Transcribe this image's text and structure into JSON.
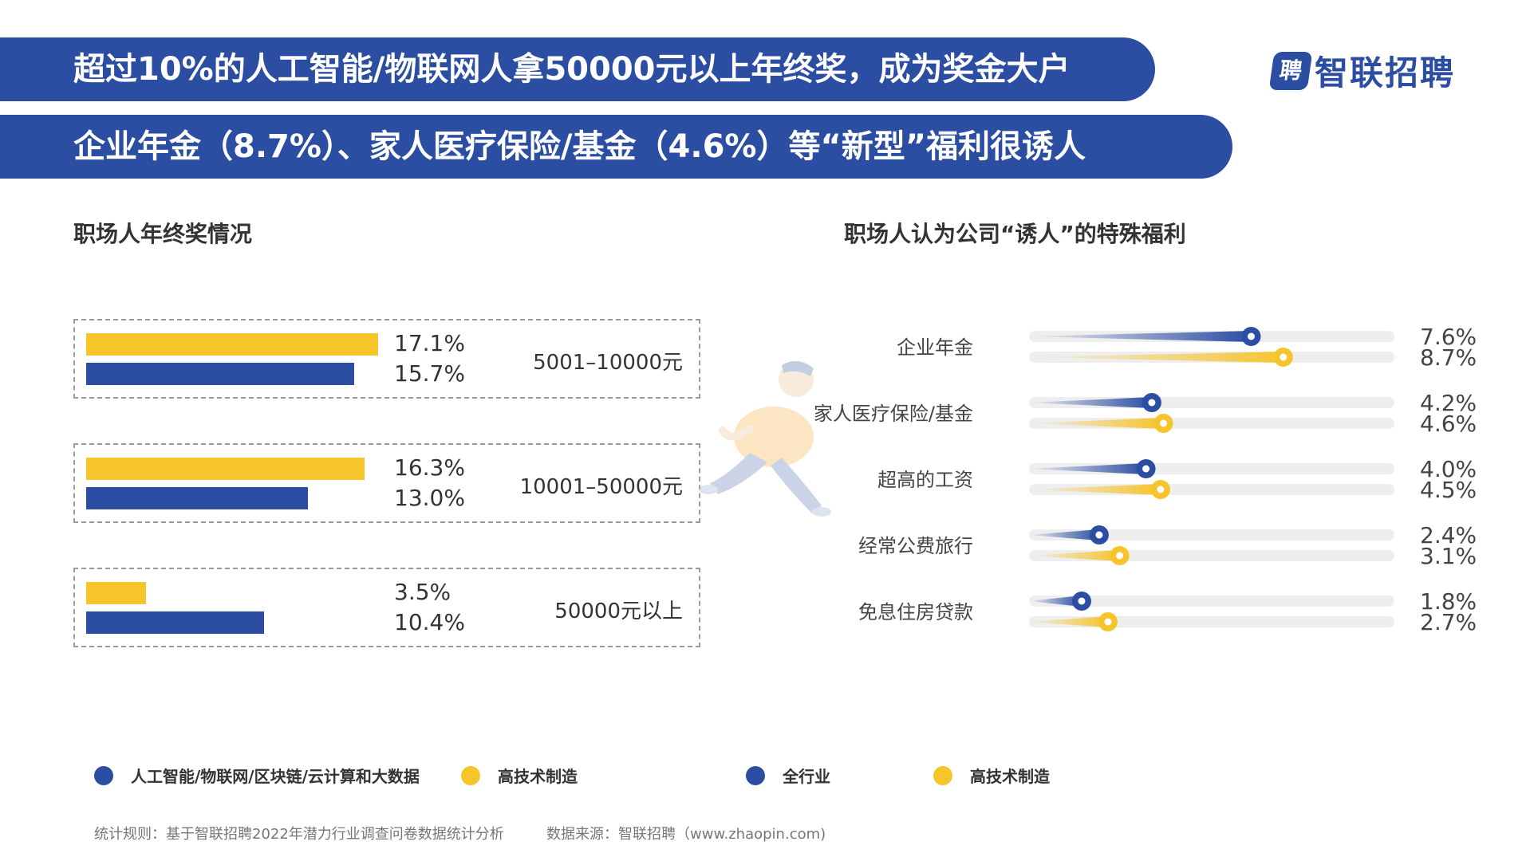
{
  "header": {
    "line1": "超过10%的人工智能/物联网人拿50000元以上年终奖，成为奖金大户",
    "line2": "企业年金（8.7%）、家人医疗保险/基金（4.6%）等“新型”福利很诱人",
    "logo_text": "智联招聘",
    "logo_mark": "聘"
  },
  "colors": {
    "blue": "#2b4ea2",
    "yellow": "#f6c42b",
    "track": "#eeeeee"
  },
  "left_chart_title": "职场人年终奖情况",
  "right_chart_title": "职场人认为公司“诱人”的特殊福利",
  "groups": [
    {
      "range": "5001–10000元",
      "yellow_label": "17.1%",
      "blue_label": "15.7%"
    },
    {
      "range": "10001–50000元",
      "yellow_label": "16.3%",
      "blue_label": "13.0%"
    },
    {
      "range": "50000元以上",
      "yellow_label": "3.5%",
      "blue_label": "10.4%"
    }
  ],
  "chart_data": [
    {
      "type": "bar",
      "title": "职场人年终奖情况",
      "categories": [
        "5001–10000元",
        "10001–50000元",
        "50000元以上"
      ],
      "series": [
        {
          "name": "高技术制造",
          "color": "#f6c42b",
          "values": [
            17.1,
            16.3,
            3.5
          ]
        },
        {
          "name": "人工智能/物联网/区块链/云计算和大数据",
          "color": "#2b4ea2",
          "values": [
            15.7,
            13.0,
            10.4
          ]
        }
      ],
      "xlim": [
        0,
        17.1
      ]
    },
    {
      "type": "bar",
      "title": "职场人认为公司“诱人”的特殊福利",
      "categories": [
        "企业年金",
        "家人医疗保险/基金",
        "超高的工资",
        "经常公费旅行",
        "免息住房贷款"
      ],
      "series": [
        {
          "name": "全行业",
          "color": "#2b4ea2",
          "values": [
            7.6,
            4.2,
            4.0,
            2.4,
            1.8
          ],
          "labels": [
            "7.6%",
            "4.2%",
            "4.0%",
            "2.4%",
            "1.8%"
          ]
        },
        {
          "name": "高技术制造",
          "color": "#f6c42b",
          "values": [
            8.7,
            4.6,
            4.5,
            3.1,
            2.7
          ],
          "labels": [
            "8.7%",
            "4.6%",
            "4.5%",
            "3.1%",
            "2.7%"
          ]
        }
      ],
      "xlim": [
        0,
        12.5
      ]
    }
  ],
  "legend": [
    {
      "label": "人工智能/物联网/区块链/云计算和大数据",
      "color": "#2b4ea2"
    },
    {
      "label": "高技术制造",
      "color": "#f6c42b"
    },
    {
      "label": "全行业",
      "color": "#2b4ea2"
    },
    {
      "label": "高技术制造",
      "color": "#f6c42b"
    }
  ],
  "footer": {
    "rule": "统计规则：基于智联招聘2022年潜力行业调查问卷数据统计分析",
    "source": "数据来源：智联招聘（www.zhaopin.com)"
  }
}
